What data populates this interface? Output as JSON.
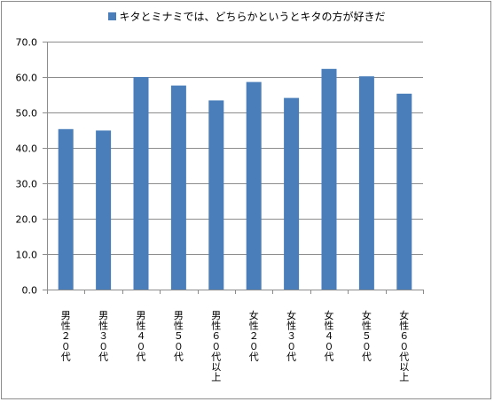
{
  "chart_data": {
    "type": "bar",
    "legend": "キタとミナミでは、どちらかというとキタの方が好きだ",
    "legend_position": "top",
    "categories": [
      "男性２０代",
      "男性３０代",
      "男性４０代",
      "男性５０代",
      "男性６０代以上",
      "女性２０代",
      "女性３０代",
      "女性４０代",
      "女性５０代",
      "女性６０代以上"
    ],
    "series": [
      {
        "name": "キタとミナミでは、どちらかというとキタの方が好きだ",
        "values": [
          45.3,
          44.9,
          60.0,
          57.6,
          53.4,
          58.6,
          54.1,
          62.3,
          60.2,
          55.3
        ]
      }
    ],
    "yticks": [
      "0.0",
      "10.0",
      "20.0",
      "30.0",
      "40.0",
      "50.0",
      "60.0",
      "70.0"
    ],
    "ylim": [
      0,
      70
    ],
    "grid": true,
    "colors": {
      "bar": "#4a7ebb",
      "grid": "#8c8c8c",
      "axis": "#8c8c8c"
    }
  }
}
